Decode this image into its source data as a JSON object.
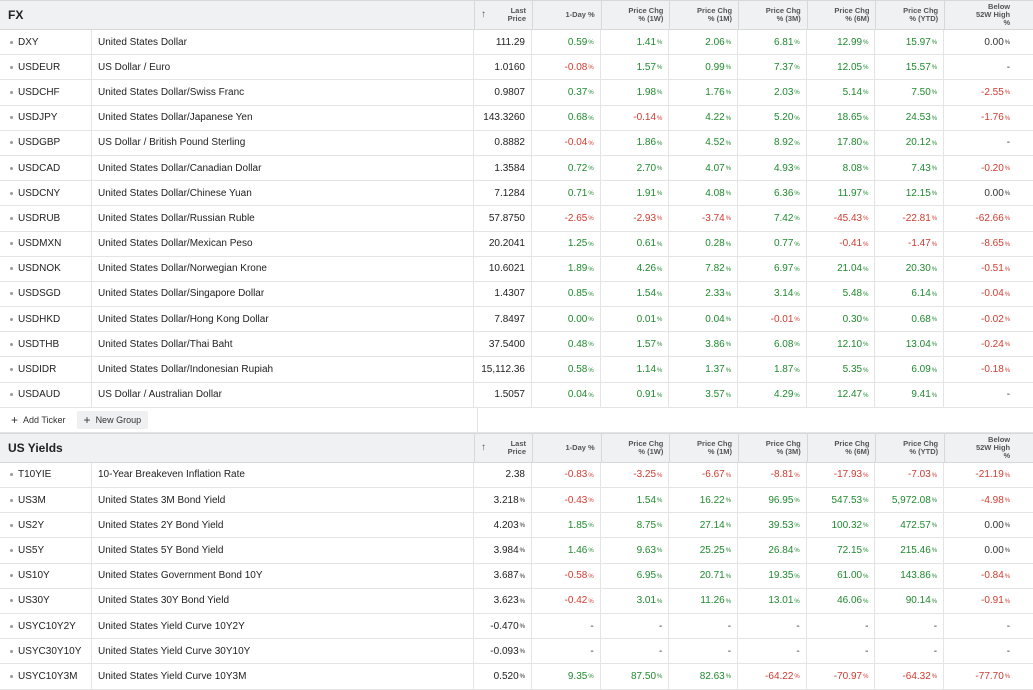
{
  "colors": {
    "positive": "#1f8a2e",
    "negative": "#d23b2f"
  },
  "fx": {
    "title": "FX",
    "headers": {
      "sort_icon": "↑",
      "last": "Last\nPrice",
      "d1": "1-Day %",
      "w1": "Price Chg\n% (1W)",
      "m1": "Price Chg\n% (1M)",
      "m3": "Price Chg\n% (3M)",
      "m6": "Price Chg\n% (6M)",
      "ytd": "Price Chg\n% (YTD)",
      "h52": "Below\n52W High\n%"
    },
    "rows": [
      {
        "sym": "DXY",
        "name": "United States Dollar",
        "last": "111.29",
        "vals": [
          "0.59",
          "1.41",
          "2.06",
          "6.81",
          "12.99",
          "15.97",
          "0.00"
        ]
      },
      {
        "sym": "USDEUR",
        "name": "US Dollar / Euro",
        "last": "1.0160",
        "vals": [
          "-0.08",
          "1.57",
          "0.99",
          "7.37",
          "12.05",
          "15.57",
          "-"
        ]
      },
      {
        "sym": "USDCHF",
        "name": "United States Dollar/Swiss Franc",
        "last": "0.9807",
        "vals": [
          "0.37",
          "1.98",
          "1.76",
          "2.03",
          "5.14",
          "7.50",
          "-2.55"
        ]
      },
      {
        "sym": "USDJPY",
        "name": "United States Dollar/Japanese Yen",
        "last": "143.3260",
        "vals": [
          "0.68",
          "-0.14",
          "4.22",
          "5.20",
          "18.65",
          "24.53",
          "-1.76"
        ]
      },
      {
        "sym": "USDGBP",
        "name": "US Dollar / British Pound Sterling",
        "last": "0.8882",
        "vals": [
          "-0.04",
          "1.86",
          "4.52",
          "8.92",
          "17.80",
          "20.12",
          "-"
        ]
      },
      {
        "sym": "USDCAD",
        "name": "United States Dollar/Canadian Dollar",
        "last": "1.3584",
        "vals": [
          "0.72",
          "2.70",
          "4.07",
          "4.93",
          "8.08",
          "7.43",
          "-0.20"
        ]
      },
      {
        "sym": "USDCNY",
        "name": "United States Dollar/Chinese Yuan",
        "last": "7.1284",
        "vals": [
          "0.71",
          "1.91",
          "4.08",
          "6.36",
          "11.97",
          "12.15",
          "0.00"
        ]
      },
      {
        "sym": "USDRUB",
        "name": "United States Dollar/Russian Ruble",
        "last": "57.8750",
        "vals": [
          "-2.65",
          "-2.93",
          "-3.74",
          "7.42",
          "-45.43",
          "-22.81",
          "-62.66"
        ]
      },
      {
        "sym": "USDMXN",
        "name": "United States Dollar/Mexican Peso",
        "last": "20.2041",
        "vals": [
          "1.25",
          "0.61",
          "0.28",
          "0.77",
          "-0.41",
          "-1.47",
          "-8.65"
        ]
      },
      {
        "sym": "USDNOK",
        "name": "United States Dollar/Norwegian Krone",
        "last": "10.6021",
        "vals": [
          "1.89",
          "4.26",
          "7.82",
          "6.97",
          "21.04",
          "20.30",
          "-0.51"
        ]
      },
      {
        "sym": "USDSGD",
        "name": "United States Dollar/Singapore Dollar",
        "last": "1.4307",
        "vals": [
          "0.85",
          "1.54",
          "2.33",
          "3.14",
          "5.48",
          "6.14",
          "-0.04"
        ]
      },
      {
        "sym": "USDHKD",
        "name": "United States Dollar/Hong Kong Dollar",
        "last": "7.8497",
        "vals": [
          "0.00",
          "0.01",
          "0.04",
          "-0.01",
          "0.30",
          "0.68",
          "-0.02"
        ]
      },
      {
        "sym": "USDTHB",
        "name": "United States Dollar/Thai Baht",
        "last": "37.5400",
        "vals": [
          "0.48",
          "1.57",
          "3.86",
          "6.08",
          "12.10",
          "13.04",
          "-0.24"
        ]
      },
      {
        "sym": "USDIDR",
        "name": "United States Dollar/Indonesian Rupiah",
        "last": "15,112.36",
        "vals": [
          "0.58",
          "1.14",
          "1.37",
          "1.87",
          "5.35",
          "6.09",
          "-0.18"
        ]
      },
      {
        "sym": "USDAUD",
        "name": "US Dollar / Australian Dollar",
        "last": "1.5057",
        "vals": [
          "0.04",
          "0.91",
          "3.57",
          "4.29",
          "12.47",
          "9.41",
          "-"
        ]
      }
    ],
    "add_ticker": "Add Ticker",
    "new_group": "New Group"
  },
  "yields": {
    "title": "US Yields",
    "headers": {
      "sort_icon": "↑",
      "last": "Last\nPrice",
      "d1": "1-Day %",
      "w1": "Price Chg\n% (1W)",
      "m1": "Price Chg\n% (1M)",
      "m3": "Price Chg\n% (3M)",
      "m6": "Price Chg\n% (6M)",
      "ytd": "Price Chg\n% (YTD)",
      "h52": "Below\n52W High\n%"
    },
    "rows": [
      {
        "sym": "T10YIE",
        "name": "10-Year Breakeven Inflation Rate",
        "last": "2.38",
        "last_pct": false,
        "vals": [
          "-0.83",
          "-3.25",
          "-6.67",
          "-8.81",
          "-17.93",
          "-7.03",
          "-21.19"
        ]
      },
      {
        "sym": "US3M",
        "name": "United States 3M Bond Yield",
        "last": "3.218",
        "last_pct": true,
        "vals": [
          "-0.43",
          "1.54",
          "16.22",
          "96.95",
          "547.53",
          "5,972.08",
          "-4.98"
        ]
      },
      {
        "sym": "US2Y",
        "name": "United States 2Y Bond Yield",
        "last": "4.203",
        "last_pct": true,
        "vals": [
          "1.85",
          "8.75",
          "27.14",
          "39.53",
          "100.32",
          "472.57",
          "0.00"
        ]
      },
      {
        "sym": "US5Y",
        "name": "United States 5Y Bond Yield",
        "last": "3.984",
        "last_pct": true,
        "vals": [
          "1.46",
          "9.63",
          "25.25",
          "26.84",
          "72.15",
          "215.46",
          "0.00"
        ]
      },
      {
        "sym": "US10Y",
        "name": "United States Government Bond 10Y",
        "last": "3.687",
        "last_pct": true,
        "vals": [
          "-0.58",
          "6.95",
          "20.71",
          "19.35",
          "61.00",
          "143.86",
          "-0.84"
        ]
      },
      {
        "sym": "US30Y",
        "name": "United States 30Y Bond Yield",
        "last": "3.623",
        "last_pct": true,
        "vals": [
          "-0.42",
          "3.01",
          "11.26",
          "13.01",
          "46.06",
          "90.14",
          "-0.91"
        ]
      },
      {
        "sym": "USYC10Y2Y",
        "name": "United States Yield Curve 10Y2Y",
        "last": "-0.470",
        "last_pct": true,
        "vals": [
          "-",
          "-",
          "-",
          "-",
          "-",
          "-",
          "-"
        ]
      },
      {
        "sym": "USYC30Y10Y",
        "name": "United States Yield Curve 30Y10Y",
        "last": "-0.093",
        "last_pct": true,
        "vals": [
          "-",
          "-",
          "-",
          "-",
          "-",
          "-",
          "-"
        ]
      },
      {
        "sym": "USYC10Y3M",
        "name": "United States Yield Curve 10Y3M",
        "last": "0.520",
        "last_pct": true,
        "vals": [
          "9.35",
          "87.50",
          "82.63",
          "-64.22",
          "-70.97",
          "-64.32",
          "-77.70"
        ]
      }
    ]
  }
}
